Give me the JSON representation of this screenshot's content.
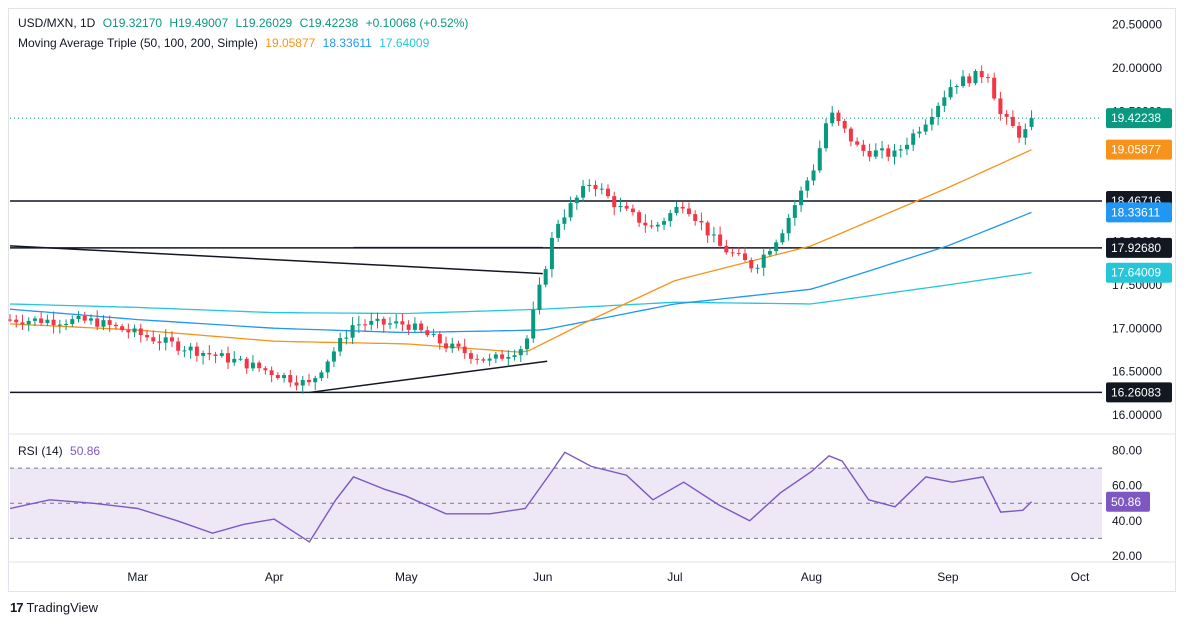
{
  "header": {
    "symbol": "USD/MXN, 1D",
    "open": "O19.32170",
    "high": "H19.49007",
    "low": "L19.26029",
    "close": "C19.42238",
    "change": "+0.10068 (+0.52%)",
    "ma_label": "Moving Average Triple (50, 100, 200, Simple)",
    "ma50_value": "19.05877",
    "ma100_value": "18.33611",
    "ma200_value": "17.64009",
    "rsi_label": "RSI (14)",
    "rsi_value": "50.86"
  },
  "colors": {
    "up": "#089981",
    "down": "#f23645",
    "ma50": "#f7931a",
    "ma100": "#2196f3",
    "ma200": "#26c6da",
    "rsi": "#7e57c2",
    "rsi_band": "#ede7f6"
  },
  "footer": {
    "brand": "TradingView",
    "logo": "17"
  },
  "chart_data": [
    {
      "type": "candlestick",
      "ylim": [
        15.85,
        20.6
      ],
      "y_ticks": [
        "20.50000",
        "20.00000",
        "19.50000",
        "19.00000",
        "18.50000",
        "18.00000",
        "17.50000",
        "17.00000",
        "16.50000",
        "16.00000"
      ],
      "x_ticks": [
        "Mar",
        "Apr",
        "May",
        "Jun",
        "Jul",
        "Aug",
        "Sep",
        "Oct"
      ],
      "price_labels": [
        {
          "label": "19.42238",
          "value": 19.42238,
          "kind": "last"
        },
        {
          "label": "19.05877",
          "value": 19.05877,
          "kind": "ma50"
        },
        {
          "label": "18.46716",
          "value": 18.46716,
          "kind": "level"
        },
        {
          "label": "18.33611",
          "value": 18.33611,
          "kind": "ma100"
        },
        {
          "label": "17.92680",
          "value": 17.9268,
          "kind": "level"
        },
        {
          "label": "17.64009",
          "value": 17.64009,
          "kind": "ma200"
        },
        {
          "label": "16.26083",
          "value": 16.26083,
          "kind": "level"
        }
      ],
      "horizontal_levels": [
        18.46716,
        17.9268,
        16.26083
      ],
      "trendlines": [
        {
          "from": [
            "2024-02-01",
            17.95
          ],
          "to": [
            "2024-06-01",
            17.63
          ]
        },
        {
          "from": [
            "2024-04-09",
            16.26
          ],
          "to": [
            "2024-06-02",
            16.62
          ]
        },
        {
          "from": [
            "2024-04-19",
            17.93
          ],
          "to": [
            "2024-06-01",
            17.93
          ]
        }
      ],
      "anchors": [
        [
          "2024-02-01",
          17.1
        ],
        [
          "2024-02-20",
          17.08
        ],
        [
          "2024-03-10",
          16.8
        ],
        [
          "2024-03-25",
          16.6
        ],
        [
          "2024-04-09",
          16.35
        ],
        [
          "2024-04-19",
          17.05
        ],
        [
          "2024-05-01",
          17.05
        ],
        [
          "2024-05-10",
          16.8
        ],
        [
          "2024-05-20",
          16.62
        ],
        [
          "2024-05-28",
          16.8
        ],
        [
          "2024-06-04",
          18.2
        ],
        [
          "2024-06-12",
          18.7
        ],
        [
          "2024-06-18",
          18.4
        ],
        [
          "2024-06-26",
          18.15
        ],
        [
          "2024-07-03",
          18.45
        ],
        [
          "2024-07-11",
          17.95
        ],
        [
          "2024-07-19",
          17.7
        ],
        [
          "2024-07-25",
          18.1
        ],
        [
          "2024-08-02",
          18.9
        ],
        [
          "2024-08-05",
          19.5
        ],
        [
          "2024-08-12",
          19.05
        ],
        [
          "2024-08-20",
          19.0
        ],
        [
          "2024-08-27",
          19.4
        ],
        [
          "2024-09-02",
          19.82
        ],
        [
          "2024-09-10",
          19.95
        ],
        [
          "2024-09-13",
          19.45
        ],
        [
          "2024-09-18",
          19.2
        ],
        [
          "2024-09-20",
          19.42
        ]
      ],
      "ma50": [
        [
          "2024-02-01",
          17.05
        ],
        [
          "2024-03-01",
          16.98
        ],
        [
          "2024-04-01",
          16.85
        ],
        [
          "2024-05-01",
          16.82
        ],
        [
          "2024-05-28",
          16.72
        ],
        [
          "2024-06-10",
          17.05
        ],
        [
          "2024-07-01",
          17.55
        ],
        [
          "2024-08-01",
          17.95
        ],
        [
          "2024-09-01",
          18.62
        ],
        [
          "2024-09-20",
          19.05877
        ]
      ],
      "ma100": [
        [
          "2024-02-01",
          17.22
        ],
        [
          "2024-03-01",
          17.1
        ],
        [
          "2024-04-01",
          17.0
        ],
        [
          "2024-05-01",
          16.95
        ],
        [
          "2024-06-01",
          16.98
        ],
        [
          "2024-07-01",
          17.28
        ],
        [
          "2024-08-01",
          17.45
        ],
        [
          "2024-09-01",
          17.95
        ],
        [
          "2024-09-20",
          18.33611
        ]
      ],
      "ma200": [
        [
          "2024-02-01",
          17.28
        ],
        [
          "2024-03-01",
          17.24
        ],
        [
          "2024-04-01",
          17.18
        ],
        [
          "2024-05-01",
          17.17
        ],
        [
          "2024-06-01",
          17.22
        ],
        [
          "2024-07-01",
          17.3
        ],
        [
          "2024-08-01",
          17.28
        ],
        [
          "2024-09-01",
          17.5
        ],
        [
          "2024-09-20",
          17.64009
        ]
      ]
    },
    {
      "type": "line",
      "name": "RSI (14)",
      "ylim": [
        20,
        86
      ],
      "y_ticks": [
        "80.00",
        "60.00",
        "40.00",
        "20.00"
      ],
      "bands": [
        30,
        50,
        70
      ],
      "last_value": 50.86,
      "x": [
        "2024-02-01",
        "2024-02-10",
        "2024-02-20",
        "2024-03-01",
        "2024-03-10",
        "2024-03-18",
        "2024-03-25",
        "2024-04-01",
        "2024-04-09",
        "2024-04-15",
        "2024-04-19",
        "2024-04-26",
        "2024-05-01",
        "2024-05-10",
        "2024-05-20",
        "2024-05-28",
        "2024-06-03",
        "2024-06-06",
        "2024-06-12",
        "2024-06-20",
        "2024-06-26",
        "2024-07-03",
        "2024-07-11",
        "2024-07-18",
        "2024-07-25",
        "2024-08-01",
        "2024-08-05",
        "2024-08-08",
        "2024-08-14",
        "2024-08-20",
        "2024-08-27",
        "2024-09-02",
        "2024-09-09",
        "2024-09-13",
        "2024-09-18",
        "2024-09-20"
      ],
      "values": [
        47,
        52,
        50,
        47,
        40,
        33,
        38,
        41,
        28,
        52,
        65,
        58,
        54,
        44,
        44,
        47,
        68,
        79,
        71,
        66,
        52,
        62,
        49,
        40,
        56,
        68,
        77,
        74,
        52,
        48,
        65,
        62,
        65,
        45,
        46,
        50.86
      ]
    }
  ]
}
